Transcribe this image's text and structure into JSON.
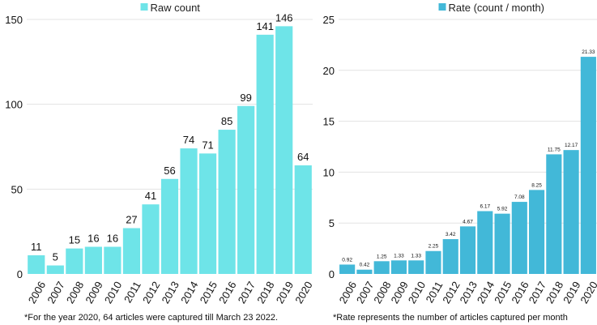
{
  "chart_data": [
    {
      "type": "bar",
      "title": "",
      "legend": "Raw count",
      "legend_position": "top-center",
      "color": "#6ee4e8",
      "categories": [
        "2006",
        "2007",
        "2008",
        "2009",
        "2010",
        "2011",
        "2012",
        "2013",
        "2014",
        "2015",
        "2016",
        "2017",
        "2018",
        "2019",
        "2020"
      ],
      "values": [
        11,
        5,
        15,
        16,
        16,
        27,
        41,
        56,
        74,
        71,
        85,
        99,
        141,
        146,
        64
      ],
      "data_labels": [
        "11",
        "5",
        "15",
        "16",
        "16",
        "27",
        "41",
        "56",
        "74",
        "71",
        "85",
        "99",
        "141",
        "146",
        "64"
      ],
      "ylim": [
        0,
        150
      ],
      "yticks": [
        0,
        50,
        100,
        150
      ],
      "xlabel": "",
      "ylabel": "",
      "grid": true,
      "footnote": "*For the year 2020, 64 articles were captured till March 23 2022."
    },
    {
      "type": "bar",
      "title": "",
      "legend": "Rate (count / month)",
      "legend_position": "top-center",
      "color": "#42b8d8",
      "categories": [
        "2006",
        "2007",
        "2008",
        "2009",
        "2010",
        "2011",
        "2012",
        "2013",
        "2014",
        "2015",
        "2016",
        "2017",
        "2018",
        "2019",
        "2020"
      ],
      "values": [
        0.92,
        0.42,
        1.25,
        1.33,
        1.33,
        2.25,
        3.42,
        4.67,
        6.17,
        5.92,
        7.08,
        8.25,
        11.75,
        12.17,
        21.33
      ],
      "data_labels": [
        "0.92",
        "0.42",
        "1.25",
        "1.33",
        "1.33",
        "2.25",
        "3.42",
        "4.67",
        "6.17",
        "5.92",
        "7.08",
        "8.25",
        "11.75",
        "12.17",
        "21.33"
      ],
      "ylim": [
        0,
        25
      ],
      "yticks": [
        0,
        5,
        10,
        15,
        20,
        25
      ],
      "xlabel": "",
      "ylabel": "",
      "grid": true,
      "footnote": "*Rate represents the number of articles captured per month"
    }
  ]
}
